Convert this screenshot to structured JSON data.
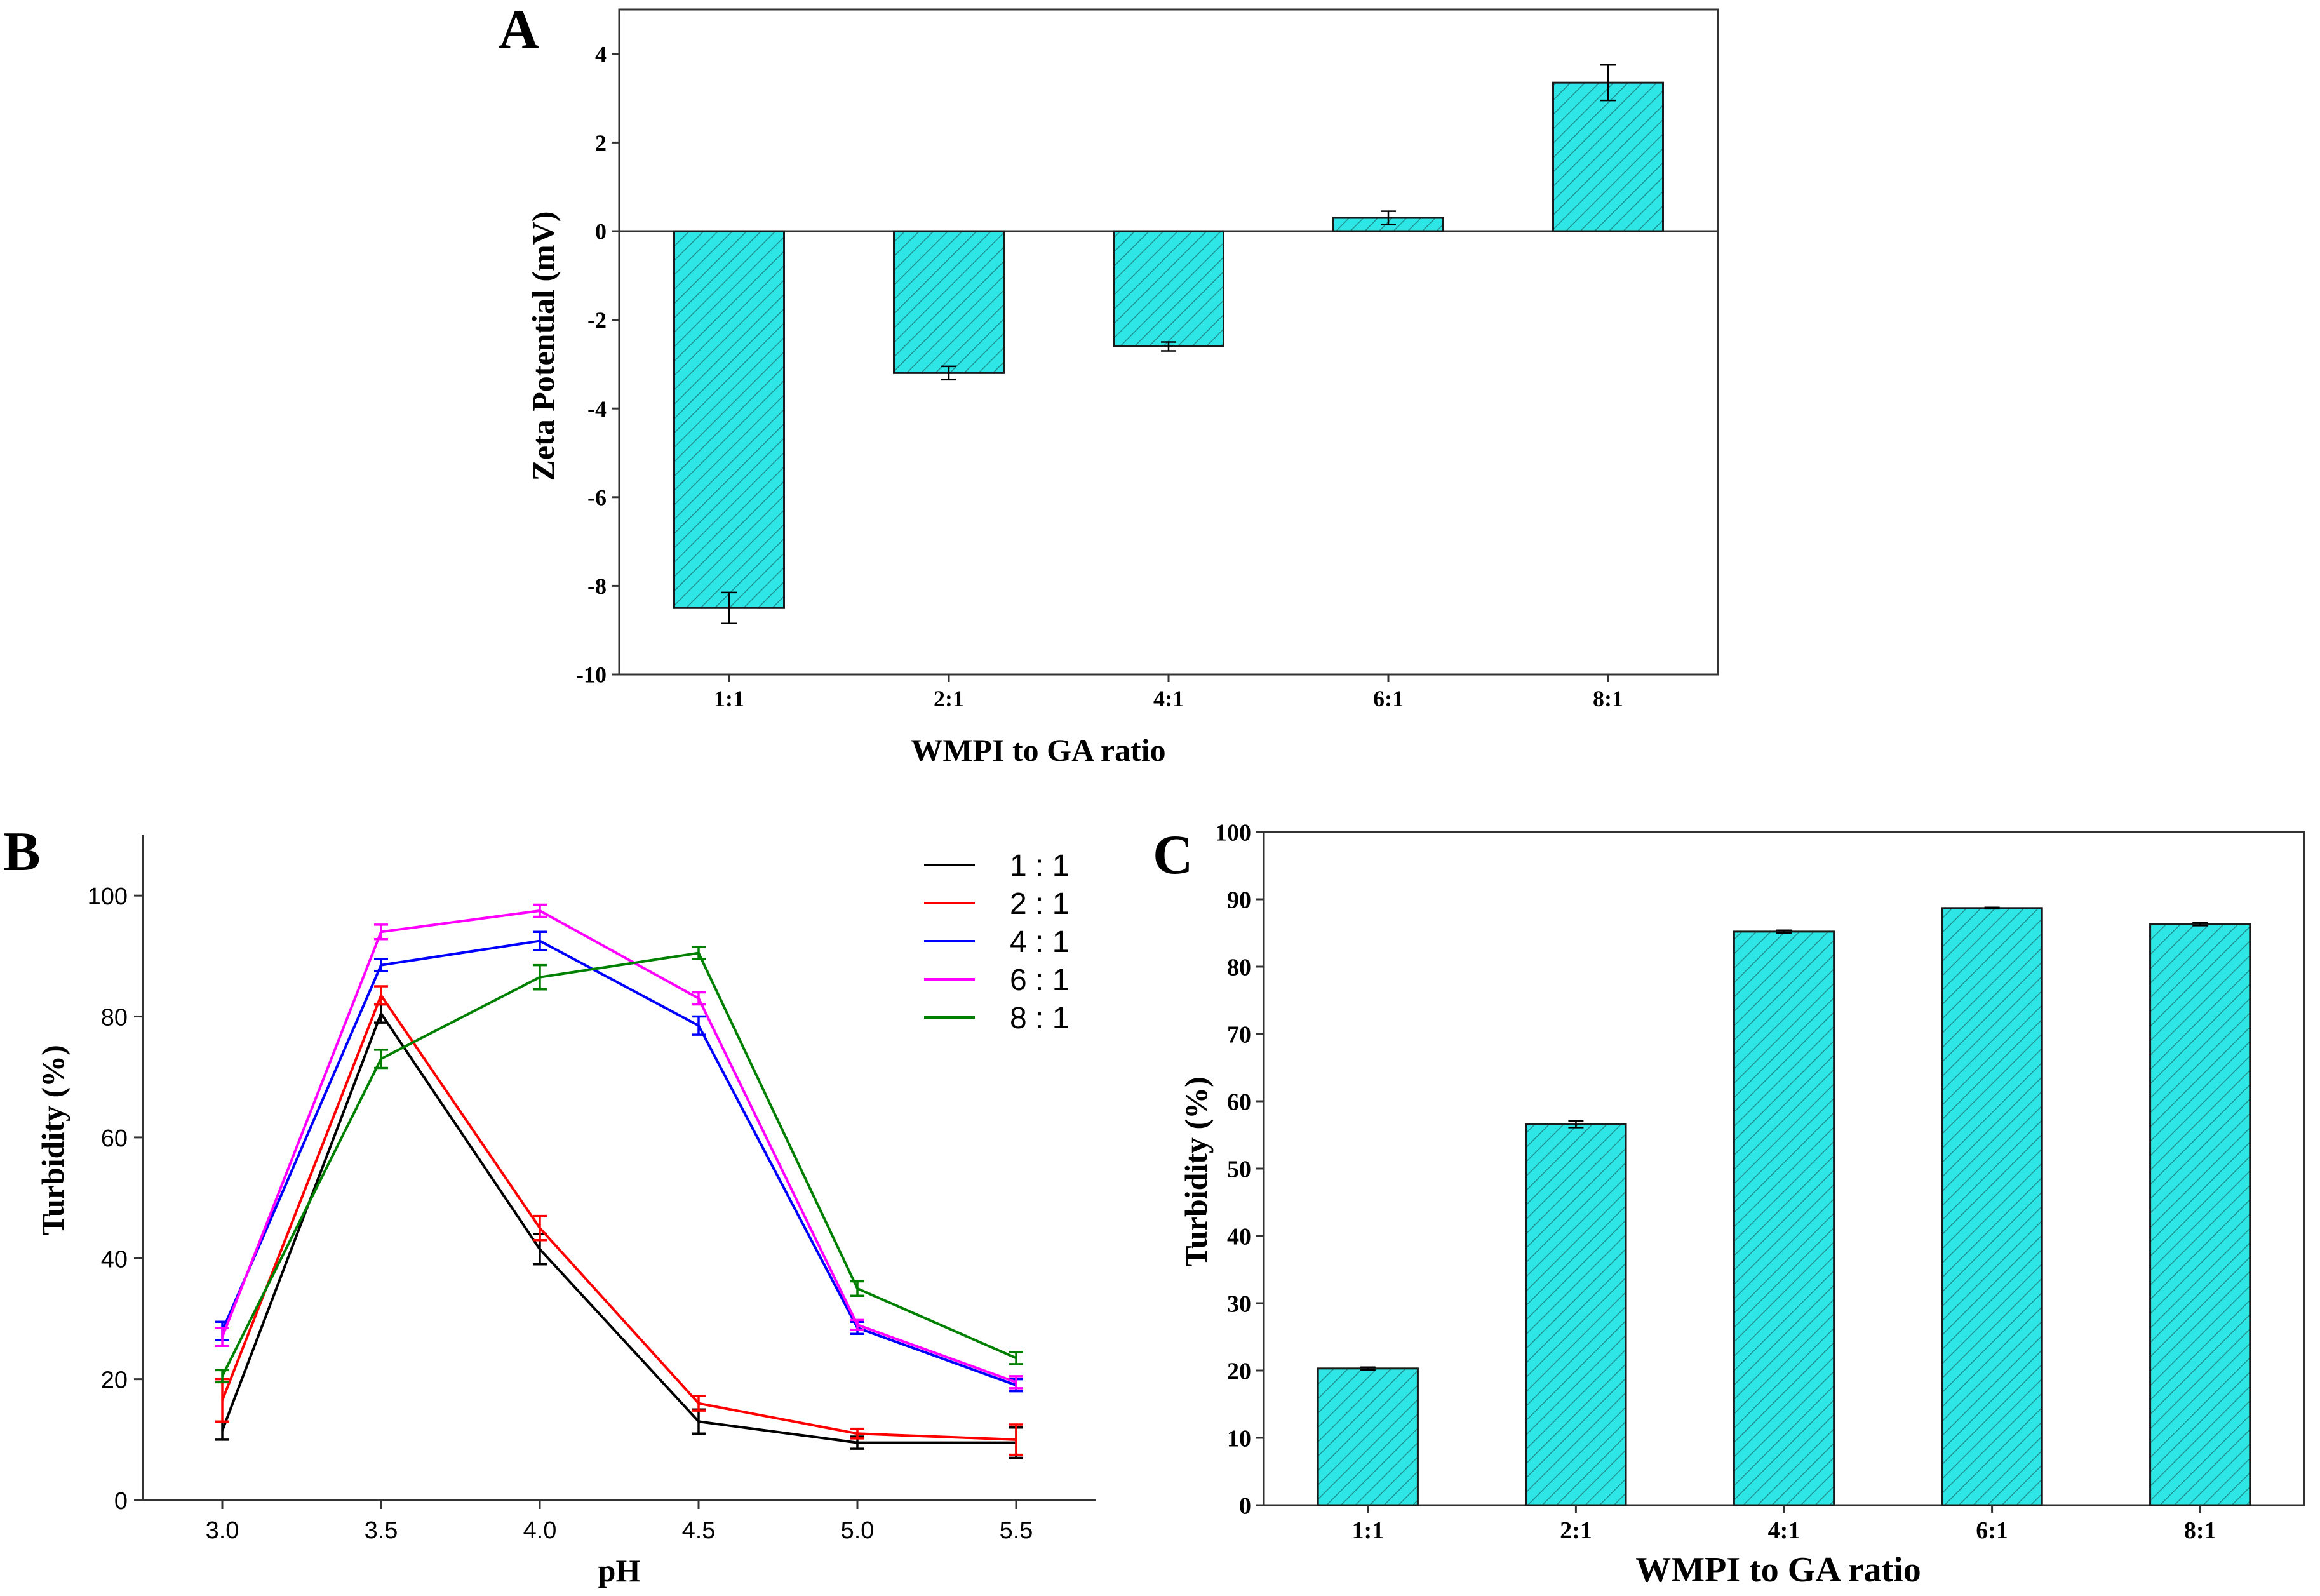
{
  "colors": {
    "bar_fill": "#2ee6e6",
    "bar_stroke": "#1a1a1a",
    "hatch": "#1f8f8f",
    "axis": "#333333"
  },
  "chart_data": [
    {
      "id": "A",
      "panel_label": "A",
      "type": "bar",
      "title": "",
      "xlabel": "WMPI to GA ratio",
      "ylabel": "Zeta Potential (mV)",
      "categories": [
        "1:1",
        "2:1",
        "4:1",
        "6:1",
        "8:1"
      ],
      "values": [
        -8.5,
        -3.2,
        -2.6,
        0.3,
        3.35
      ],
      "errors": [
        0.35,
        0.15,
        0.1,
        0.15,
        0.4
      ],
      "ylim": [
        -10,
        5
      ],
      "yticks": [
        -10,
        -8,
        -6,
        -4,
        -2,
        0,
        2,
        4
      ],
      "zero_line": true
    },
    {
      "id": "B",
      "panel_label": "B",
      "type": "line",
      "title": "",
      "xlabel": "pH",
      "ylabel": "Turbidity (%)",
      "x": [
        3.0,
        3.5,
        4.0,
        4.5,
        5.0,
        5.5
      ],
      "xticks": [
        "3.0",
        "3.5",
        "4.0",
        "4.5",
        "5.0",
        "5.5"
      ],
      "xlim": [
        2.75,
        5.75
      ],
      "ylim": [
        0,
        110
      ],
      "yticks": [
        0,
        20,
        40,
        60,
        80,
        100
      ],
      "legend_position": "top-right",
      "series": [
        {
          "name": "1 : 1",
          "color": "#000000",
          "values": [
            11.5,
            80.5,
            41.5,
            13.0,
            9.5,
            9.5
          ],
          "errors": [
            1.5,
            1.5,
            2.5,
            2.0,
            1.0,
            2.5
          ]
        },
        {
          "name": "2 : 1",
          "color": "#ff0000",
          "values": [
            16.5,
            83.5,
            45.0,
            16.0,
            11.0,
            10.0
          ],
          "errors": [
            3.5,
            1.5,
            2.0,
            1.2,
            0.8,
            2.5
          ]
        },
        {
          "name": "4 : 1",
          "color": "#0000ff",
          "values": [
            28.0,
            88.5,
            92.5,
            78.5,
            28.5,
            19.0
          ],
          "errors": [
            1.5,
            1.0,
            1.5,
            1.5,
            1.0,
            1.0
          ]
        },
        {
          "name": "6 : 1",
          "color": "#ff00ff",
          "values": [
            27.0,
            94.0,
            97.5,
            83.0,
            29.0,
            19.5
          ],
          "errors": [
            1.5,
            1.2,
            1.0,
            1.0,
            0.8,
            1.0
          ]
        },
        {
          "name": "8 : 1",
          "color": "#008000",
          "values": [
            20.5,
            73.0,
            86.5,
            90.5,
            35.0,
            23.5
          ],
          "errors": [
            1.0,
            1.5,
            2.0,
            1.0,
            1.2,
            1.0
          ]
        }
      ]
    },
    {
      "id": "C",
      "panel_label": "C",
      "type": "bar",
      "title": "",
      "xlabel": "WMPI to GA ratio",
      "ylabel": "Turbidity (%)",
      "categories": [
        "1:1",
        "2:1",
        "4:1",
        "6:1",
        "8:1"
      ],
      "values": [
        20.3,
        56.6,
        85.2,
        88.7,
        86.3
      ],
      "errors": [
        0.2,
        0.5,
        0.2,
        0.1,
        0.2
      ],
      "ylim": [
        0,
        100
      ],
      "yticks": [
        0,
        10,
        20,
        30,
        40,
        50,
        60,
        70,
        80,
        90,
        100
      ]
    }
  ]
}
